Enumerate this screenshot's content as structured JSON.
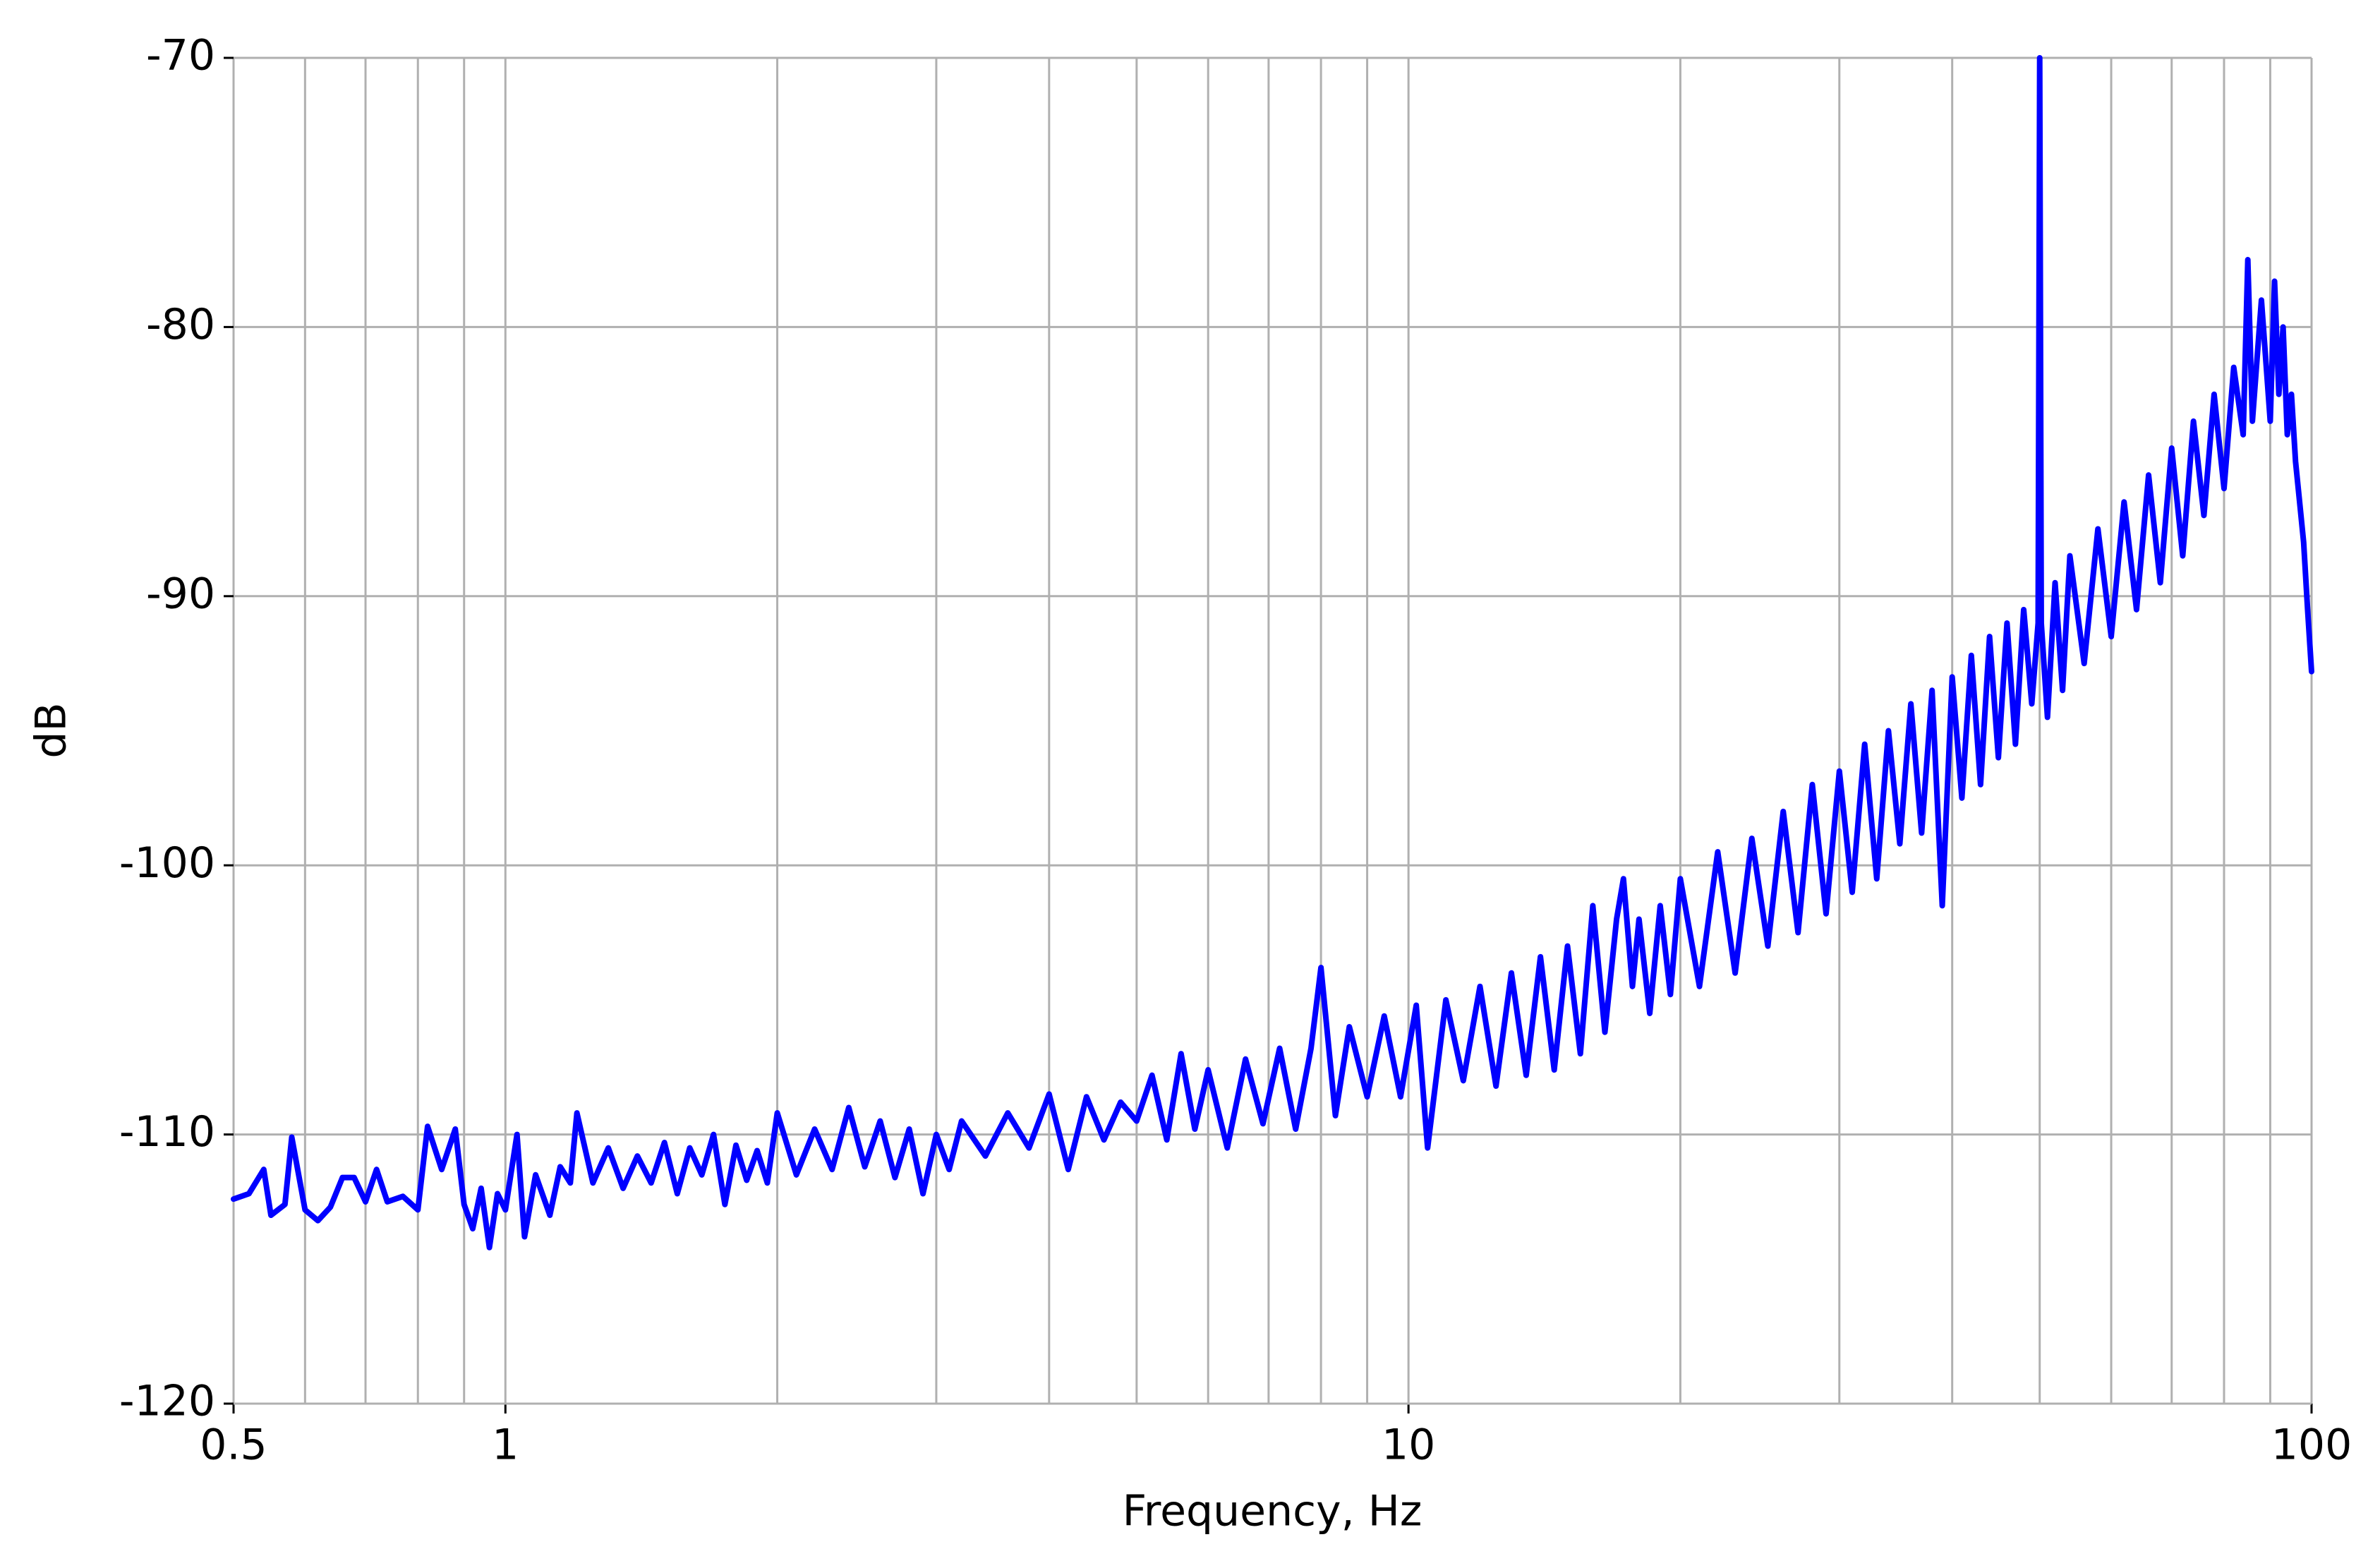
{
  "chart_data": {
    "type": "line",
    "xlabel": "Frequency, Hz",
    "ylabel": "dB",
    "xscale": "log",
    "grid": true,
    "xlim": [
      0.5,
      100
    ],
    "ylim": [
      -120,
      -70
    ],
    "xticks": [
      0.5,
      1,
      10,
      100
    ],
    "xminorticks": [
      0.6,
      0.7,
      0.8,
      0.9,
      2,
      3,
      4,
      5,
      6,
      7,
      8,
      9,
      20,
      30,
      40,
      50,
      60,
      70,
      80,
      90
    ],
    "yticks": [
      -120,
      -110,
      -100,
      -90,
      -80,
      -70
    ],
    "color": "#0000ff",
    "x": [
      0.5,
      0.52,
      0.54,
      0.55,
      0.57,
      0.58,
      0.6,
      0.62,
      0.64,
      0.66,
      0.68,
      0.7,
      0.72,
      0.74,
      0.77,
      0.8,
      0.82,
      0.85,
      0.88,
      0.9,
      0.92,
      0.94,
      0.96,
      0.98,
      1.0,
      1.03,
      1.05,
      1.08,
      1.12,
      1.15,
      1.18,
      1.2,
      1.25,
      1.3,
      1.35,
      1.4,
      1.45,
      1.5,
      1.55,
      1.6,
      1.65,
      1.7,
      1.75,
      1.8,
      1.85,
      1.9,
      1.95,
      2.0,
      2.1,
      2.2,
      2.3,
      2.4,
      2.5,
      2.6,
      2.7,
      2.8,
      2.9,
      3.0,
      3.1,
      3.2,
      3.4,
      3.6,
      3.8,
      4.0,
      4.2,
      4.4,
      4.6,
      4.8,
      5.0,
      5.2,
      5.4,
      5.6,
      5.8,
      6.0,
      6.3,
      6.6,
      6.9,
      7.2,
      7.5,
      7.8,
      8.0,
      8.3,
      8.6,
      9.0,
      9.4,
      9.8,
      10.2,
      10.5,
      11,
      11.5,
      12,
      12.5,
      13,
      13.5,
      14,
      14.5,
      15,
      15.5,
      16,
      16.5,
      17,
      17.3,
      17.7,
      18,
      18.5,
      19,
      19.5,
      20,
      21,
      22,
      23,
      24,
      25,
      26,
      27,
      28,
      29,
      30,
      31,
      32,
      33,
      34,
      35,
      36,
      37,
      38,
      39,
      40,
      41,
      42,
      43,
      44,
      45,
      46,
      47,
      48,
      49,
      49.8,
      50,
      50.2,
      51,
      52,
      53,
      54,
      56,
      58,
      60,
      62,
      64,
      66,
      68,
      70,
      72,
      74,
      76,
      78,
      80,
      82,
      84,
      85,
      86,
      88,
      90,
      91,
      92,
      93,
      94,
      95,
      96,
      97,
      98,
      99,
      100
    ],
    "values": [
      -112.4,
      -112.2,
      -111.3,
      -113,
      -112.6,
      -110.1,
      -112.8,
      -113.2,
      -112.7,
      -111.6,
      -111.6,
      -112.5,
      -111.3,
      -112.5,
      -112.3,
      -112.8,
      -109.7,
      -111.3,
      -109.8,
      -112.6,
      -113.5,
      -112,
      -114.2,
      -112.2,
      -112.8,
      -110,
      -113.8,
      -111.5,
      -113,
      -111.2,
      -111.8,
      -109.2,
      -111.8,
      -110.5,
      -112,
      -110.8,
      -111.8,
      -110.3,
      -112.2,
      -110.5,
      -111.5,
      -110,
      -112.6,
      -110.4,
      -111.7,
      -110.6,
      -111.8,
      -109.2,
      -111.5,
      -109.8,
      -111.3,
      -109,
      -111.2,
      -109.5,
      -111.6,
      -109.8,
      -112.2,
      -110,
      -111.3,
      -109.5,
      -110.8,
      -109.2,
      -110.5,
      -108.5,
      -111.3,
      -108.6,
      -110.2,
      -108.8,
      -109.5,
      -107.8,
      -110.2,
      -107,
      -109.8,
      -107.6,
      -110.5,
      -107.2,
      -109.6,
      -106.8,
      -109.8,
      -106.8,
      -103.8,
      -109.3,
      -106,
      -108.6,
      -105.6,
      -108.6,
      -105.2,
      -110.5,
      -105,
      -108,
      -104.5,
      -108.2,
      -104,
      -107.8,
      -103.4,
      -107.6,
      -103,
      -107,
      -101.5,
      -106.2,
      -102,
      -100.5,
      -104.5,
      -102,
      -105.5,
      -101.5,
      -104.8,
      -100.5,
      -104.5,
      -99.5,
      -104,
      -99,
      -103,
      -98,
      -102.5,
      -97,
      -101.8,
      -96.5,
      -101,
      -95.5,
      -100.5,
      -95,
      -99.2,
      -94,
      -98.8,
      -93.5,
      -101.5,
      -93,
      -97.5,
      -92.2,
      -97,
      -91.5,
      -96,
      -91,
      -95.5,
      -90.5,
      -94,
      -91,
      -70,
      -91,
      -94.5,
      -89.5,
      -93.5,
      -88.5,
      -92.5,
      -87.5,
      -91.5,
      -86.5,
      -90.5,
      -85.5,
      -89.5,
      -84.5,
      -88.5,
      -83.5,
      -87,
      -82.5,
      -86,
      -81.5,
      -84,
      -77.5,
      -83.5,
      -79,
      -83.5,
      -78.3,
      -82.5,
      -80,
      -84,
      -82.5,
      -85,
      -86.5,
      -88,
      -90.5,
      -92.8
    ]
  }
}
